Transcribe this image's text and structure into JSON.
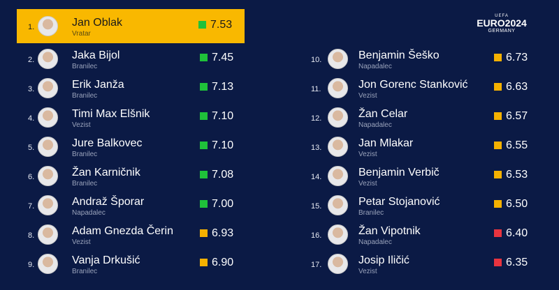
{
  "logo": {
    "org": "UEFA",
    "title": "EURO2024",
    "host": "GERMANY"
  },
  "players": [
    {
      "rank": "1.",
      "name": "Jan Oblak",
      "position": "Vratar",
      "rating": "7.53",
      "color": "#1fc13a"
    },
    {
      "rank": "2.",
      "name": "Jaka Bijol",
      "position": "Branilec",
      "rating": "7.45",
      "color": "#1fc13a"
    },
    {
      "rank": "3.",
      "name": "Erik Janža",
      "position": "Branilec",
      "rating": "7.13",
      "color": "#1fc13a"
    },
    {
      "rank": "4.",
      "name": "Timi Max Elšnik",
      "position": "Vezist",
      "rating": "7.10",
      "color": "#1fc13a"
    },
    {
      "rank": "5.",
      "name": "Jure Balkovec",
      "position": "Branilec",
      "rating": "7.10",
      "color": "#1fc13a"
    },
    {
      "rank": "6.",
      "name": "Žan Karničnik",
      "position": "Branilec",
      "rating": "7.08",
      "color": "#1fc13a"
    },
    {
      "rank": "7.",
      "name": "Andraž Šporar",
      "position": "Napadalec",
      "rating": "7.00",
      "color": "#1fc13a"
    },
    {
      "rank": "8.",
      "name": "Adam Gnezda Čerin",
      "position": "Vezist",
      "rating": "6.93",
      "color": "#f5b100"
    },
    {
      "rank": "9.",
      "name": "Vanja Drkušić",
      "position": "Branilec",
      "rating": "6.90",
      "color": "#f5b100"
    },
    {
      "rank": "10.",
      "name": "Benjamin Šeško",
      "position": "Napadalec",
      "rating": "6.73",
      "color": "#f5b100"
    },
    {
      "rank": "11.",
      "name": "Jon Gorenc Stanković",
      "position": "Vezist",
      "rating": "6.63",
      "color": "#f5b100"
    },
    {
      "rank": "12.",
      "name": "Žan Celar",
      "position": "Napadalec",
      "rating": "6.57",
      "color": "#f5b100"
    },
    {
      "rank": "13.",
      "name": "Jan Mlakar",
      "position": "Vezist",
      "rating": "6.55",
      "color": "#f5b100"
    },
    {
      "rank": "14.",
      "name": "Benjamin Verbič",
      "position": "Vezist",
      "rating": "6.53",
      "color": "#f5b100"
    },
    {
      "rank": "15.",
      "name": "Petar Stojanović",
      "position": "Branilec",
      "rating": "6.50",
      "color": "#f5b100"
    },
    {
      "rank": "16.",
      "name": "Žan Vipotnik",
      "position": "Napadalec",
      "rating": "6.40",
      "color": "#e8343f"
    },
    {
      "rank": "17.",
      "name": "Josip Iličić",
      "position": "Vezist",
      "rating": "6.35",
      "color": "#e8343f"
    }
  ]
}
